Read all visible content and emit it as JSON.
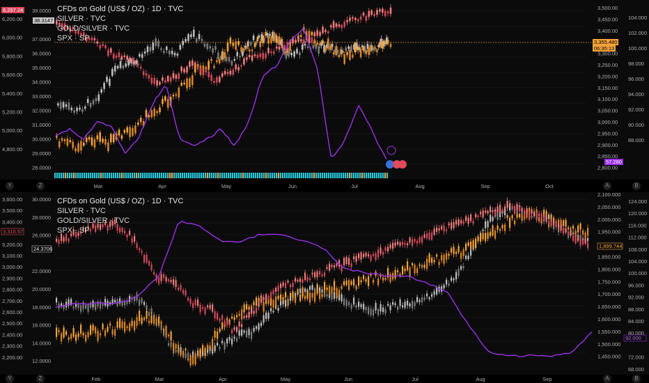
{
  "legend": {
    "top": {
      "title": "CFDs on Gold (US$ / OZ) · 1D · TVC",
      "l2": "SILVER · TVC",
      "l3": "GOLD/SILVER · TVC",
      "l4": "SPX · SP"
    },
    "bottom": {
      "title": "CFDs on Gold (US$ / OZ) · 1D · TVC",
      "l2": "SILVER · TVC",
      "l3": "GOLD/SILVER · TVC",
      "l4": "SPX · SP"
    }
  },
  "top": {
    "left_axis": [
      "6,200.00",
      "6,000.00",
      "5,800.00",
      "5,600.00",
      "5,400.00",
      "5,200.00",
      "5,000.00",
      "4,800.00"
    ],
    "mid_axis": [
      "39.0000",
      "38.3147",
      "37.0000",
      "36.0000",
      "35.0000",
      "34.0000",
      "33.0000",
      "32.0000",
      "31.0000",
      "30.0000",
      "29.0000",
      "28.0000"
    ],
    "right_axis": [
      "3,500.00",
      "3,450.00",
      "3,400.00",
      "3,355.480",
      "3,300.00",
      "3,250.00",
      "3,200.00",
      "3,150.00",
      "3,100.00",
      "3,050.00",
      "3,000.00",
      "2,950.00",
      "2,900.00",
      "2,850.00",
      "2,800.00"
    ],
    "right2_axis": [
      "104.000",
      "102.000",
      "100.000",
      "98.000",
      "96.000",
      "94.000",
      "92.000",
      "90.000",
      "88.000",
      "57.280"
    ],
    "spx_badge": "6,297.24",
    "silver_badge": "38.3147",
    "gold_badge": "3,355.480",
    "gold_badge2": "06:35:13",
    "ratio_badge": "57.280",
    "months": [
      "Mar",
      "Apr",
      "May",
      "Jun",
      "Jul",
      "Aug",
      "Sep",
      "Oct"
    ]
  },
  "bottom": {
    "left_axis": [
      "3,600.00",
      "3,500.00",
      "3,400.00",
      "3,315.57",
      "3,200.00",
      "3,100.00",
      "3,000.00",
      "2,900.00",
      "2,800.00",
      "2,700.00",
      "2,600.00",
      "2,500.00",
      "2,400.00",
      "2,300.00",
      "2,200.00"
    ],
    "mid_axis": [
      "30.0000",
      "28.0000",
      "26.0000",
      "24.3706",
      "22.0000",
      "20.0000",
      "18.0000",
      "16.0000",
      "14.0000",
      "12.0000"
    ],
    "right_axis": [
      "2,100.000",
      "2,050.000",
      "2,000.000",
      "1,950.000",
      "1,899.744",
      "1,850.000",
      "1,800.000",
      "1,750.000",
      "1,700.000",
      "1,650.000",
      "1,600.000",
      "1,550.000",
      "1,500.000",
      "1,450.000"
    ],
    "right2_axis": [
      "124.000",
      "120.000",
      "116.000",
      "112.000",
      "108.000",
      "104.000",
      "100.000",
      "96.000",
      "92.000",
      "88.000",
      "84.000",
      "80.000",
      "77.953",
      "72.000",
      "68.000"
    ],
    "months": [
      "Feb",
      "Mar",
      "Apr",
      "May",
      "Jun",
      "Jul",
      "Aug",
      "Sep"
    ]
  },
  "axis_buttons": {
    "y": "Y",
    "z": "Z",
    "a": "A",
    "b": "B"
  },
  "colors": {
    "gold": "#f5a33a",
    "silver": "#bdbdbd",
    "ratio": "#9b30e8",
    "spx": "#f07b7b",
    "spx_dn": "#d04a5a",
    "bg": "#0b0b0b"
  }
}
